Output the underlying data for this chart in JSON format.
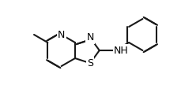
{
  "background_color": "#ffffff",
  "line_color": "#1a1a1a",
  "line_width": 1.5,
  "font_size": 9,
  "atom_labels": {
    "N_pyridine": "N",
    "N_thiazole": "N",
    "S_thiazole": "S",
    "NH": "NH",
    "H_NH": "H",
    "methyl_label": ""
  },
  "bond_color": "#1a1a1a"
}
